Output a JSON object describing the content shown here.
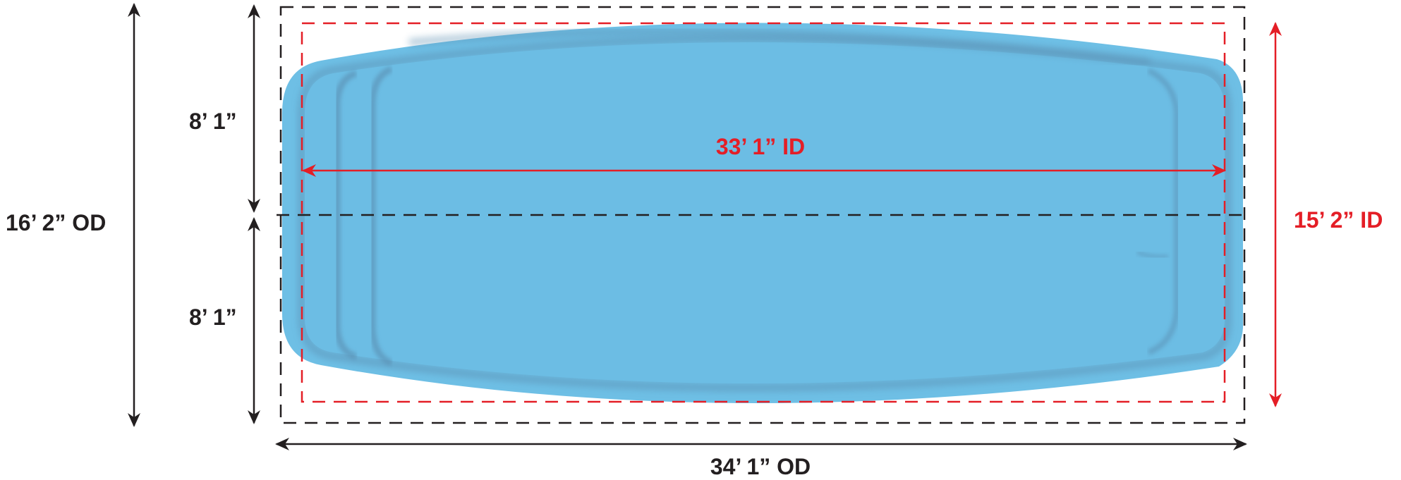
{
  "diagram": {
    "labels": {
      "overall_height": "16’ 2” OD",
      "top_half": "8’ 1”",
      "bottom_half": "8’ 1”",
      "inner_length": "33’ 1” ID",
      "inner_width": "15’ 2” ID",
      "overall_length": "34’ 1” OD"
    },
    "colors": {
      "od": "#231f20",
      "id": "#e41e26",
      "pool_rim": "#6ebfe5",
      "pool_water": "#6cbde4",
      "pool_shadow": "#5a8db0"
    }
  }
}
